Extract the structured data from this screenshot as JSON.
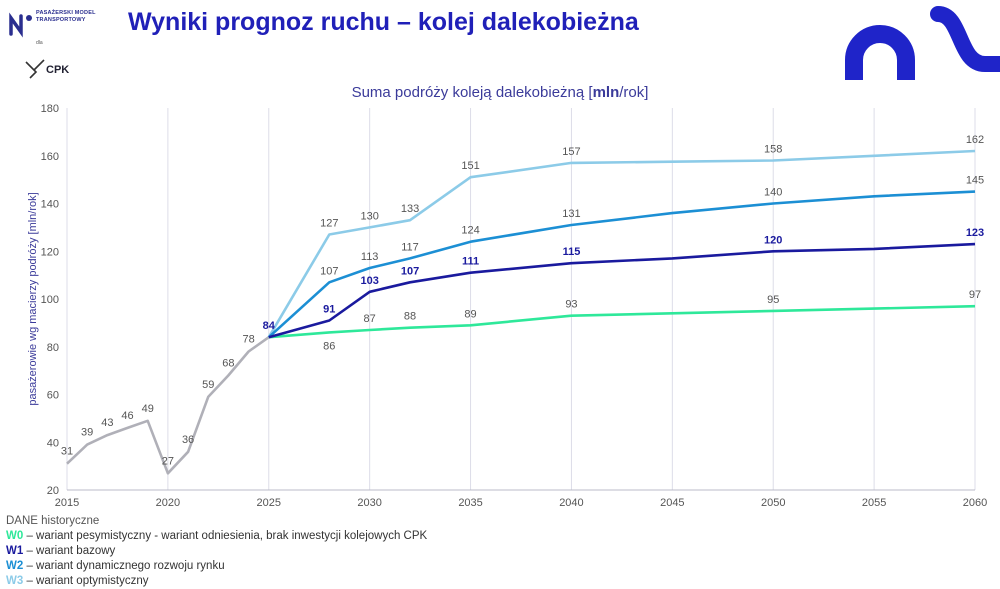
{
  "header": {
    "title": "Wyniki prognoz ruchu – kolej dalekobieżna",
    "logo_org": "PASAŻERSKI MODEL TRANSPORTOWY",
    "logo_for": "dla",
    "logo_cpk": "CPK"
  },
  "colors": {
    "title": "#2020b8",
    "historical": "#b0b0b8",
    "w0": "#2ee89a",
    "w1": "#1a1a9e",
    "w2": "#1c8fd4",
    "w3": "#8ccbe8"
  },
  "chart_data": {
    "type": "line",
    "title": "Suma podróży koleją dalekobieżną [mln/rok]",
    "title_parts": [
      "Suma podróży koleją dalekobieżną [",
      "mln",
      "/rok]"
    ],
    "ylabel": "pasażerowie wg macierzy podróży [mln/rok]",
    "xlabel": "",
    "xlim": [
      2015,
      2060
    ],
    "ylim": [
      20,
      180
    ],
    "x_ticks": [
      2015,
      2020,
      2025,
      2030,
      2035,
      2040,
      2045,
      2050,
      2055,
      2060
    ],
    "y_ticks": [
      20,
      40,
      60,
      80,
      100,
      120,
      140,
      160,
      180
    ],
    "grid": "vertical",
    "series": [
      {
        "key": "historical",
        "name": "DANE historyczne",
        "x": [
          2015,
          2016,
          2017,
          2018,
          2019,
          2020,
          2021,
          2022,
          2023,
          2024,
          2025
        ],
        "y": [
          31,
          39,
          43,
          46,
          49,
          27,
          36,
          59,
          68,
          78,
          84
        ],
        "labels": [
          {
            "x": 2015,
            "y": 31,
            "text": "31"
          },
          {
            "x": 2016,
            "y": 39,
            "text": "39"
          },
          {
            "x": 2017,
            "y": 43,
            "text": "43"
          },
          {
            "x": 2018,
            "y": 46,
            "text": "46"
          },
          {
            "x": 2019,
            "y": 49,
            "text": "49"
          },
          {
            "x": 2020,
            "y": 27,
            "text": "27"
          },
          {
            "x": 2021,
            "y": 36,
            "text": "36"
          },
          {
            "x": 2022,
            "y": 59,
            "text": "59"
          },
          {
            "x": 2023,
            "y": 68,
            "text": "68"
          },
          {
            "x": 2024,
            "y": 78,
            "text": "78"
          }
        ]
      },
      {
        "key": "w0",
        "name": "W0",
        "x": [
          2025,
          2028,
          2030,
          2032,
          2035,
          2040,
          2045,
          2050,
          2055,
          2060
        ],
        "y": [
          84,
          86,
          87,
          88,
          89,
          93,
          94,
          95,
          96,
          97
        ],
        "labels": [
          {
            "x": 2028,
            "y": 86,
            "text": "86",
            "pos": "below"
          },
          {
            "x": 2030,
            "y": 87,
            "text": "87",
            "pos": "above"
          },
          {
            "x": 2032,
            "y": 88,
            "text": "88",
            "pos": "above"
          },
          {
            "x": 2035,
            "y": 89,
            "text": "89",
            "pos": "above"
          },
          {
            "x": 2040,
            "y": 93,
            "text": "93",
            "pos": "above"
          },
          {
            "x": 2050,
            "y": 95,
            "text": "95",
            "pos": "above"
          },
          {
            "x": 2060,
            "y": 97,
            "text": "97",
            "pos": "above"
          }
        ]
      },
      {
        "key": "w1",
        "name": "W1",
        "x": [
          2025,
          2028,
          2030,
          2032,
          2035,
          2040,
          2045,
          2050,
          2055,
          2060
        ],
        "y": [
          84,
          91,
          103,
          107,
          111,
          115,
          117,
          120,
          121,
          123
        ],
        "labels": [
          {
            "x": 2025,
            "y": 84,
            "text": "84",
            "pos": "above"
          },
          {
            "x": 2028,
            "y": 91,
            "text": "91",
            "pos": "above"
          },
          {
            "x": 2030,
            "y": 103,
            "text": "103",
            "pos": "above"
          },
          {
            "x": 2032,
            "y": 107,
            "text": "107",
            "pos": "above"
          },
          {
            "x": 2035,
            "y": 111,
            "text": "111",
            "pos": "above"
          },
          {
            "x": 2040,
            "y": 115,
            "text": "115",
            "pos": "above"
          },
          {
            "x": 2050,
            "y": 120,
            "text": "120",
            "pos": "above"
          },
          {
            "x": 2060,
            "y": 123,
            "text": "123",
            "pos": "above"
          }
        ]
      },
      {
        "key": "w2",
        "name": "W2",
        "x": [
          2025,
          2028,
          2030,
          2032,
          2035,
          2040,
          2045,
          2050,
          2055,
          2060
        ],
        "y": [
          84,
          107,
          113,
          117,
          124,
          131,
          136,
          140,
          143,
          145
        ],
        "labels": [
          {
            "x": 2028,
            "y": 107,
            "text": "107",
            "pos": "above"
          },
          {
            "x": 2030,
            "y": 113,
            "text": "113",
            "pos": "above"
          },
          {
            "x": 2032,
            "y": 117,
            "text": "117",
            "pos": "above"
          },
          {
            "x": 2035,
            "y": 124,
            "text": "124",
            "pos": "above"
          },
          {
            "x": 2040,
            "y": 131,
            "text": "131",
            "pos": "above"
          },
          {
            "x": 2050,
            "y": 140,
            "text": "140",
            "pos": "above"
          },
          {
            "x": 2060,
            "y": 145,
            "text": "145",
            "pos": "above"
          }
        ]
      },
      {
        "key": "w3",
        "name": "W3",
        "x": [
          2025,
          2028,
          2030,
          2032,
          2035,
          2040,
          2045,
          2050,
          2055,
          2060
        ],
        "y": [
          84,
          127,
          130,
          133,
          151,
          157,
          157.5,
          158,
          160,
          162
        ],
        "labels": [
          {
            "x": 2028,
            "y": 127,
            "text": "127",
            "pos": "above"
          },
          {
            "x": 2030,
            "y": 130,
            "text": "130",
            "pos": "above"
          },
          {
            "x": 2032,
            "y": 133,
            "text": "133",
            "pos": "above"
          },
          {
            "x": 2035,
            "y": 151,
            "text": "151",
            "pos": "above"
          },
          {
            "x": 2040,
            "y": 157,
            "text": "157",
            "pos": "above"
          },
          {
            "x": 2050,
            "y": 158,
            "text": "158",
            "pos": "above"
          },
          {
            "x": 2060,
            "y": 162,
            "text": "162",
            "pos": "above"
          }
        ]
      }
    ]
  },
  "legend": {
    "historical": "DANE historyczne",
    "w0_code": "W0",
    "w0_text": " – wariant pesymistyczny - wariant odniesienia, brak inwestycji kolejowych CPK",
    "w1_code": "W1",
    "w1_text": " – wariant bazowy",
    "w2_code": "W2",
    "w2_text": " – wariant dynamicznego rozwoju rynku",
    "w3_code": "W3",
    "w3_text": " –  wariant optymistyczny"
  }
}
